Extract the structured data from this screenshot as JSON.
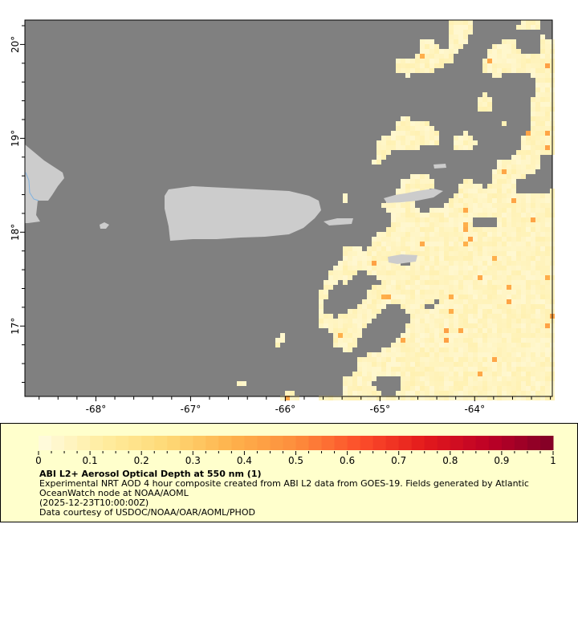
{
  "map": {
    "lon_range": [
      -68.75,
      -63.18
    ],
    "lat_range": [
      16.25,
      20.26
    ],
    "x_ticks": [
      {
        "v": -68,
        "label": "-68°"
      },
      {
        "v": -67,
        "label": "-67°"
      },
      {
        "v": -66,
        "label": "-66°"
      },
      {
        "v": -65,
        "label": "-65°"
      },
      {
        "v": -64,
        "label": "-64°"
      }
    ],
    "y_ticks": [
      {
        "v": 20,
        "label": "20°"
      },
      {
        "v": 19,
        "label": "19°"
      },
      {
        "v": 18,
        "label": "18°"
      },
      {
        "v": 17,
        "label": "17°"
      }
    ],
    "colors": {
      "ocean_nodata": "#808080",
      "land": "#cccccc",
      "river": "#7fb2e0"
    }
  },
  "legend": {
    "colorbar_range": [
      0,
      1
    ],
    "colorbar_labels": [
      "0",
      "0.1",
      "0.2",
      "0.3",
      "0.4",
      "0.5",
      "0.6",
      "0.7",
      "0.8",
      "0.9",
      "1"
    ],
    "colormap_stops": [
      "#fffbe0",
      "#ffeda0",
      "#fed976",
      "#feb24c",
      "#fd8d3c",
      "#fc4e2a",
      "#e31a1c",
      "#bd0026",
      "#800026"
    ],
    "title": "ABI L2+ Aerosol Optical Depth at 550 nm (1)",
    "description_line1": "Experimental NRT AOD 4 hour composite created from ABI L2 data from GOES-19. Fields generated by Atlantic",
    "description_line2": "OceanWatch node at NOAA/AOML",
    "time": "(2025-12-23T10:00:00Z)",
    "credit": "Data courtesy of USDOC/NOAA/OAR/AOML/PHOD",
    "background": "#ffffcc"
  }
}
